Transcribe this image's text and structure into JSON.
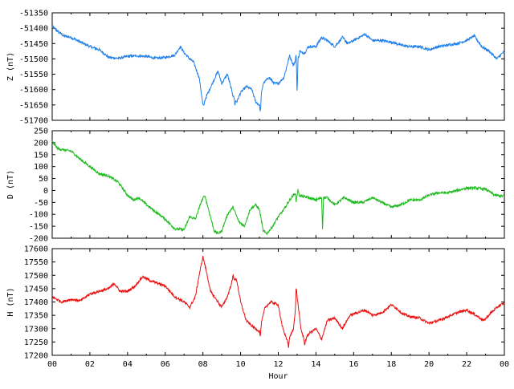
{
  "chart_data": [
    {
      "type": "line",
      "ylabel": "Z (nT)",
      "color": "#1f7fe8",
      "ylim": [
        -51700,
        -51350
      ],
      "yticks": [
        -51350,
        -51400,
        -51450,
        -51500,
        -51550,
        -51600,
        -51650,
        -51700
      ],
      "xlim": [
        0,
        24
      ],
      "keypoints": [
        [
          0,
          -51395
        ],
        [
          0.3,
          -51410
        ],
        [
          0.6,
          -51425
        ],
        [
          1.0,
          -51430
        ],
        [
          1.5,
          -51445
        ],
        [
          2.0,
          -51460
        ],
        [
          2.5,
          -51470
        ],
        [
          3.0,
          -51495
        ],
        [
          3.5,
          -51498
        ],
        [
          4.0,
          -51492
        ],
        [
          4.5,
          -51490
        ],
        [
          5.0,
          -51492
        ],
        [
          5.5,
          -51498
        ],
        [
          6.0,
          -51495
        ],
        [
          6.5,
          -51488
        ],
        [
          6.8,
          -51460
        ],
        [
          7.0,
          -51480
        ],
        [
          7.3,
          -51500
        ],
        [
          7.5,
          -51510
        ],
        [
          7.8,
          -51560
        ],
        [
          8.0,
          -51650
        ],
        [
          8.2,
          -51620
        ],
        [
          8.5,
          -51580
        ],
        [
          8.8,
          -51540
        ],
        [
          9.0,
          -51580
        ],
        [
          9.3,
          -51550
        ],
        [
          9.6,
          -51620
        ],
        [
          9.8,
          -51640
        ],
        [
          10.0,
          -51610
        ],
        [
          10.3,
          -51590
        ],
        [
          10.6,
          -51600
        ],
        [
          10.8,
          -51640
        ],
        [
          11.0,
          -51650
        ],
        [
          11.2,
          -51580
        ],
        [
          11.5,
          -51560
        ],
        [
          11.8,
          -51580
        ],
        [
          12.0,
          -51580
        ],
        [
          12.3,
          -51560
        ],
        [
          12.6,
          -51490
        ],
        [
          12.8,
          -51520
        ],
        [
          13.0,
          -51500
        ],
        [
          13.2,
          -51480
        ],
        [
          13.4,
          -51480
        ],
        [
          13.6,
          -51460
        ],
        [
          14.0,
          -51460
        ],
        [
          14.3,
          -51430
        ],
        [
          14.6,
          -51440
        ],
        [
          15.0,
          -51460
        ],
        [
          15.4,
          -51430
        ],
        [
          15.7,
          -51450
        ],
        [
          16.0,
          -51440
        ],
        [
          16.3,
          -51430
        ],
        [
          16.6,
          -51420
        ],
        [
          17.0,
          -51440
        ],
        [
          17.5,
          -51440
        ],
        [
          18.0,
          -51445
        ],
        [
          18.5,
          -51455
        ],
        [
          19.0,
          -51460
        ],
        [
          19.5,
          -51460
        ],
        [
          20.0,
          -51470
        ],
        [
          20.5,
          -51460
        ],
        [
          21.0,
          -51455
        ],
        [
          21.5,
          -51450
        ],
        [
          22.0,
          -51440
        ],
        [
          22.4,
          -51425
        ],
        [
          22.8,
          -51460
        ],
        [
          23.2,
          -51475
        ],
        [
          23.6,
          -51500
        ],
        [
          24.0,
          -51475
        ]
      ],
      "spikes": [
        [
          8.05,
          -51655
        ],
        [
          9.7,
          -51650
        ],
        [
          11.05,
          -51675
        ],
        [
          13.0,
          -51615
        ],
        [
          13.15,
          -51470
        ],
        [
          12.95,
          -51480
        ]
      ]
    },
    {
      "type": "line",
      "ylabel": "D (nT)",
      "color": "#1dbb1d",
      "ylim": [
        -200,
        250
      ],
      "yticks": [
        250,
        200,
        150,
        100,
        50,
        0,
        -50,
        -100,
        -150,
        -200
      ],
      "xlim": [
        0,
        24
      ],
      "keypoints": [
        [
          0,
          205
        ],
        [
          0.3,
          175
        ],
        [
          0.6,
          170
        ],
        [
          1.0,
          165
        ],
        [
          1.5,
          130
        ],
        [
          2.0,
          100
        ],
        [
          2.5,
          70
        ],
        [
          3.0,
          60
        ],
        [
          3.5,
          35
        ],
        [
          4.0,
          -20
        ],
        [
          4.3,
          -40
        ],
        [
          4.6,
          -30
        ],
        [
          5.0,
          -60
        ],
        [
          5.5,
          -90
        ],
        [
          6.0,
          -120
        ],
        [
          6.5,
          -160
        ],
        [
          7.0,
          -165
        ],
        [
          7.3,
          -110
        ],
        [
          7.6,
          -120
        ],
        [
          7.9,
          -50
        ],
        [
          8.1,
          -20
        ],
        [
          8.3,
          -80
        ],
        [
          8.6,
          -170
        ],
        [
          8.8,
          -180
        ],
        [
          9.0,
          -170
        ],
        [
          9.3,
          -100
        ],
        [
          9.6,
          -70
        ],
        [
          9.9,
          -130
        ],
        [
          10.2,
          -150
        ],
        [
          10.5,
          -80
        ],
        [
          10.8,
          -60
        ],
        [
          11.0,
          -80
        ],
        [
          11.2,
          -170
        ],
        [
          11.4,
          -180
        ],
        [
          11.7,
          -150
        ],
        [
          12.0,
          -110
        ],
        [
          12.3,
          -80
        ],
        [
          12.6,
          -40
        ],
        [
          12.9,
          -10
        ],
        [
          13.1,
          -20
        ],
        [
          13.3,
          -25
        ],
        [
          13.6,
          -30
        ],
        [
          14.0,
          -40
        ],
        [
          14.3,
          -30
        ],
        [
          14.6,
          -30
        ],
        [
          15.0,
          -60
        ],
        [
          15.5,
          -30
        ],
        [
          16.0,
          -50
        ],
        [
          16.5,
          -50
        ],
        [
          17.0,
          -30
        ],
        [
          17.5,
          -50
        ],
        [
          18.0,
          -70
        ],
        [
          18.5,
          -60
        ],
        [
          19.0,
          -40
        ],
        [
          19.5,
          -40
        ],
        [
          20.0,
          -20
        ],
        [
          20.5,
          -10
        ],
        [
          21.0,
          -10
        ],
        [
          21.5,
          0
        ],
        [
          22.0,
          10
        ],
        [
          22.5,
          10
        ],
        [
          23.0,
          5
        ],
        [
          23.5,
          -20
        ],
        [
          24.0,
          -25
        ]
      ],
      "spikes": [
        [
          14.35,
          -165
        ],
        [
          13.05,
          5
        ],
        [
          12.95,
          -50
        ]
      ]
    },
    {
      "type": "line",
      "ylabel": "H (nT)",
      "color": "#e81111",
      "ylim": [
        17200,
        17600
      ],
      "yticks": [
        17600,
        17550,
        17500,
        17450,
        17400,
        17350,
        17300,
        17250,
        17200
      ],
      "xlim": [
        0,
        24
      ],
      "xticks": [
        "00",
        "02",
        "04",
        "06",
        "08",
        "10",
        "12",
        "14",
        "16",
        "18",
        "20",
        "22",
        "00"
      ],
      "xlabel": "Hour",
      "keypoints": [
        [
          0,
          17420
        ],
        [
          0.5,
          17400
        ],
        [
          1.0,
          17410
        ],
        [
          1.5,
          17405
        ],
        [
          2.0,
          17430
        ],
        [
          2.5,
          17440
        ],
        [
          3.0,
          17450
        ],
        [
          3.3,
          17470
        ],
        [
          3.6,
          17440
        ],
        [
          4.0,
          17440
        ],
        [
          4.4,
          17460
        ],
        [
          4.8,
          17495
        ],
        [
          5.2,
          17480
        ],
        [
          5.6,
          17470
        ],
        [
          6.0,
          17460
        ],
        [
          6.5,
          17420
        ],
        [
          7.0,
          17400
        ],
        [
          7.3,
          17380
        ],
        [
          7.6,
          17420
        ],
        [
          7.8,
          17500
        ],
        [
          8.0,
          17570
        ],
        [
          8.2,
          17510
        ],
        [
          8.4,
          17440
        ],
        [
          8.7,
          17410
        ],
        [
          9.0,
          17380
        ],
        [
          9.3,
          17420
        ],
        [
          9.6,
          17490
        ],
        [
          9.8,
          17480
        ],
        [
          10.0,
          17400
        ],
        [
          10.3,
          17330
        ],
        [
          10.6,
          17310
        ],
        [
          11.0,
          17290
        ],
        [
          11.3,
          17380
        ],
        [
          11.6,
          17400
        ],
        [
          12.0,
          17390
        ],
        [
          12.2,
          17310
        ],
        [
          12.5,
          17250
        ],
        [
          12.8,
          17300
        ],
        [
          13.0,
          17420
        ],
        [
          13.2,
          17300
        ],
        [
          13.4,
          17250
        ],
        [
          13.6,
          17280
        ],
        [
          14.0,
          17300
        ],
        [
          14.3,
          17260
        ],
        [
          14.6,
          17330
        ],
        [
          15.0,
          17340
        ],
        [
          15.4,
          17300
        ],
        [
          15.8,
          17350
        ],
        [
          16.2,
          17360
        ],
        [
          16.6,
          17370
        ],
        [
          17.0,
          17350
        ],
        [
          17.5,
          17360
        ],
        [
          18.0,
          17390
        ],
        [
          18.3,
          17375
        ],
        [
          18.6,
          17355
        ],
        [
          19.0,
          17345
        ],
        [
          19.5,
          17340
        ],
        [
          20.0,
          17320
        ],
        [
          20.5,
          17330
        ],
        [
          21.0,
          17345
        ],
        [
          21.5,
          17360
        ],
        [
          22.0,
          17370
        ],
        [
          22.5,
          17350
        ],
        [
          22.9,
          17330
        ],
        [
          23.3,
          17360
        ],
        [
          23.7,
          17385
        ],
        [
          24.0,
          17395
        ]
      ],
      "spikes": [
        [
          12.95,
          17460
        ],
        [
          13.4,
          17240
        ],
        [
          11.05,
          17270
        ],
        [
          9.6,
          17500
        ],
        [
          12.55,
          17230
        ]
      ]
    }
  ]
}
